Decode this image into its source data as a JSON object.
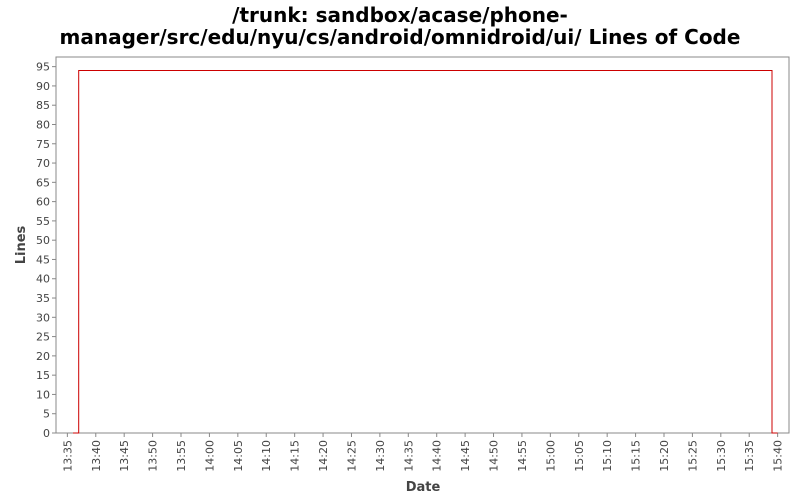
{
  "chart_data": {
    "type": "line",
    "title": [
      "/trunk: sandbox/acase/phone-",
      "manager/src/edu/nyu/cs/android/omnidroid/ui/ Lines of Code"
    ],
    "xlabel": "Date",
    "ylabel": "Lines",
    "x_ticks": [
      "13:35",
      "13:40",
      "13:45",
      "13:50",
      "13:55",
      "14:00",
      "14:05",
      "14:10",
      "14:15",
      "14:20",
      "14:25",
      "14:30",
      "14:35",
      "14:40",
      "14:45",
      "14:50",
      "14:55",
      "15:00",
      "15:05",
      "15:10",
      "15:15",
      "15:20",
      "15:25",
      "15:30",
      "15:35",
      "15:40"
    ],
    "y_ticks": [
      0,
      5,
      10,
      15,
      20,
      25,
      30,
      35,
      40,
      45,
      50,
      55,
      60,
      65,
      70,
      75,
      80,
      85,
      90,
      95
    ],
    "xlim": [
      "13:33",
      "15:42"
    ],
    "ylim": [
      0,
      97.5
    ],
    "grid": false,
    "series": [
      {
        "color": "#cc0000",
        "step": true,
        "points": [
          {
            "x": "13:36",
            "y": 0
          },
          {
            "x": "13:37",
            "y": 0
          },
          {
            "x": "13:37",
            "y": 94
          },
          {
            "x": "15:39",
            "y": 94
          },
          {
            "x": "15:39",
            "y": 0
          },
          {
            "x": "15:40",
            "y": 0
          }
        ]
      }
    ]
  }
}
